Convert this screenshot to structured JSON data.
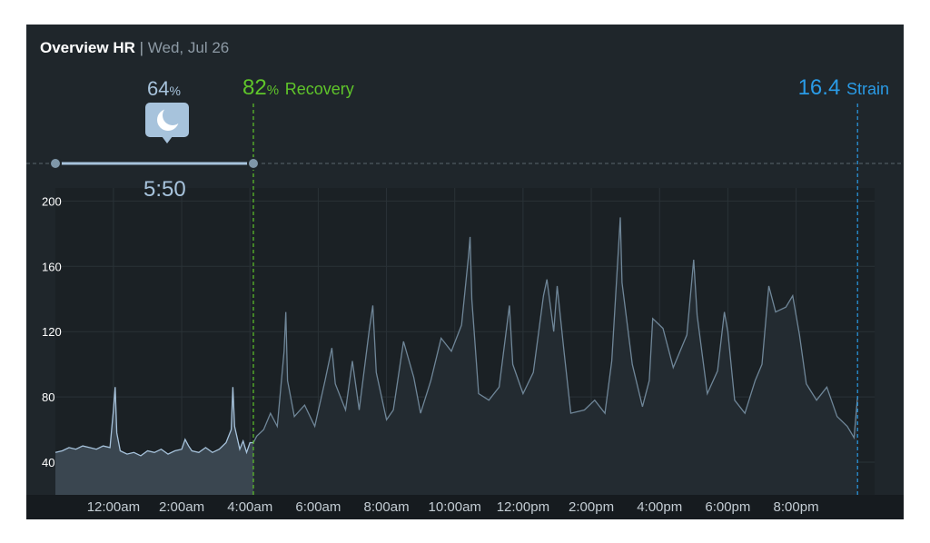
{
  "header": {
    "title": "Overview HR",
    "separator": "|",
    "date": "Wed, Jul 26"
  },
  "sleep": {
    "percent": "64",
    "percent_unit": "%",
    "duration": "5:50",
    "icon": "moon-icon"
  },
  "recovery": {
    "value": "82",
    "unit": "%",
    "label": "Recovery"
  },
  "strain": {
    "value": "16.4",
    "label": "Strain"
  },
  "colors": {
    "background": "#1f262b",
    "sleep": "#a7c3dc",
    "recovery": "#5fc52a",
    "strain": "#2a9be6",
    "hr_line": "#7f97a9"
  },
  "chart_data": {
    "type": "line",
    "title": "Overview HR",
    "ylabel": "",
    "xlabel": "",
    "ylim": [
      20,
      208
    ],
    "y_ticks": [
      200,
      160,
      120,
      80,
      40
    ],
    "x_tick_labels": [
      "12:00am",
      "2:00am",
      "4:00am",
      "6:00am",
      "8:00am",
      "10:00am",
      "12:00pm",
      "2:00pm",
      "4:00pm",
      "6:00pm",
      "8:00pm"
    ],
    "x_range_hours": [
      -1.7,
      22.3
    ],
    "grid": true,
    "sleep_period_hours": [
      -1.7,
      4.1
    ],
    "recovery_marker_hour": 4.1,
    "strain_marker_hour": 21.8,
    "hr_points": [
      [
        -1.7,
        46
      ],
      [
        -1.5,
        47
      ],
      [
        -1.3,
        49
      ],
      [
        -1.1,
        48
      ],
      [
        -0.9,
        50
      ],
      [
        -0.7,
        49
      ],
      [
        -0.5,
        48
      ],
      [
        -0.3,
        50
      ],
      [
        -0.1,
        49
      ],
      [
        0.0,
        72
      ],
      [
        0.05,
        86
      ],
      [
        0.1,
        58
      ],
      [
        0.2,
        47
      ],
      [
        0.4,
        45
      ],
      [
        0.6,
        46
      ],
      [
        0.8,
        44
      ],
      [
        1.0,
        47
      ],
      [
        1.2,
        46
      ],
      [
        1.4,
        48
      ],
      [
        1.6,
        45
      ],
      [
        1.8,
        47
      ],
      [
        2.0,
        48
      ],
      [
        2.1,
        54
      ],
      [
        2.2,
        50
      ],
      [
        2.3,
        47
      ],
      [
        2.5,
        46
      ],
      [
        2.7,
        49
      ],
      [
        2.9,
        46
      ],
      [
        3.1,
        48
      ],
      [
        3.3,
        52
      ],
      [
        3.45,
        60
      ],
      [
        3.5,
        86
      ],
      [
        3.55,
        62
      ],
      [
        3.7,
        48
      ],
      [
        3.8,
        53
      ],
      [
        3.9,
        46
      ],
      [
        4.0,
        52
      ],
      [
        4.1,
        52
      ],
      [
        4.2,
        56
      ],
      [
        4.4,
        60
      ],
      [
        4.6,
        70
      ],
      [
        4.8,
        62
      ],
      [
        5.0,
        108
      ],
      [
        5.05,
        132
      ],
      [
        5.1,
        90
      ],
      [
        5.3,
        68
      ],
      [
        5.6,
        75
      ],
      [
        5.9,
        62
      ],
      [
        6.2,
        90
      ],
      [
        6.4,
        110
      ],
      [
        6.5,
        88
      ],
      [
        6.8,
        72
      ],
      [
        7.0,
        102
      ],
      [
        7.2,
        72
      ],
      [
        7.5,
        122
      ],
      [
        7.6,
        136
      ],
      [
        7.7,
        95
      ],
      [
        8.0,
        66
      ],
      [
        8.2,
        72
      ],
      [
        8.5,
        114
      ],
      [
        8.8,
        92
      ],
      [
        9.0,
        70
      ],
      [
        9.3,
        90
      ],
      [
        9.6,
        116
      ],
      [
        9.9,
        108
      ],
      [
        10.2,
        124
      ],
      [
        10.4,
        166
      ],
      [
        10.45,
        178
      ],
      [
        10.5,
        140
      ],
      [
        10.7,
        82
      ],
      [
        11.0,
        78
      ],
      [
        11.3,
        86
      ],
      [
        11.6,
        136
      ],
      [
        11.7,
        100
      ],
      [
        12.0,
        82
      ],
      [
        12.3,
        95
      ],
      [
        12.6,
        142
      ],
      [
        12.7,
        152
      ],
      [
        12.9,
        120
      ],
      [
        13.0,
        148
      ],
      [
        13.2,
        108
      ],
      [
        13.4,
        70
      ],
      [
        13.8,
        72
      ],
      [
        14.1,
        78
      ],
      [
        14.4,
        70
      ],
      [
        14.6,
        102
      ],
      [
        14.85,
        190
      ],
      [
        14.9,
        150
      ],
      [
        15.2,
        100
      ],
      [
        15.5,
        74
      ],
      [
        15.7,
        90
      ],
      [
        15.8,
        128
      ],
      [
        16.1,
        122
      ],
      [
        16.4,
        98
      ],
      [
        16.8,
        118
      ],
      [
        17.0,
        164
      ],
      [
        17.1,
        130
      ],
      [
        17.4,
        82
      ],
      [
        17.7,
        96
      ],
      [
        17.9,
        132
      ],
      [
        18.0,
        120
      ],
      [
        18.2,
        78
      ],
      [
        18.5,
        70
      ],
      [
        18.8,
        90
      ],
      [
        19.0,
        100
      ],
      [
        19.2,
        148
      ],
      [
        19.4,
        132
      ],
      [
        19.7,
        135
      ],
      [
        19.9,
        142
      ],
      [
        20.1,
        118
      ],
      [
        20.3,
        88
      ],
      [
        20.6,
        78
      ],
      [
        20.9,
        86
      ],
      [
        21.2,
        68
      ],
      [
        21.5,
        62
      ],
      [
        21.7,
        55
      ],
      [
        21.8,
        80
      ]
    ]
  }
}
